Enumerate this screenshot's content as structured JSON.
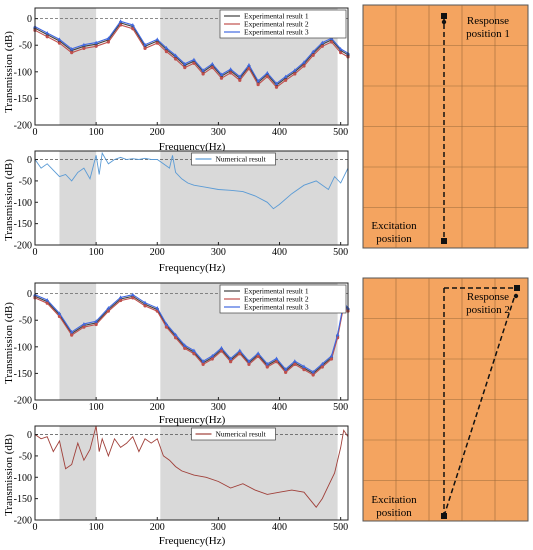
{
  "figure": {
    "background": "#ffffff",
    "grey_band_color": "#d9d9d9",
    "plate_color": "#f4a460",
    "plate_grid_color": "#9a6a3a"
  },
  "chart_data": [
    {
      "id": "exp1",
      "type": "line",
      "xlabel": "Frequency(Hz)",
      "ylabel": "Transmission (dB)",
      "xlim": [
        0,
        512
      ],
      "ylim": [
        -200,
        20
      ],
      "xticks": [
        0,
        100,
        200,
        300,
        400,
        500
      ],
      "yticks": [
        0,
        -50,
        -100,
        -150,
        -200
      ],
      "reference_line_y": 0,
      "shaded_bands": [
        [
          40,
          100
        ],
        [
          205,
          495
        ]
      ],
      "legend_position": "top-right",
      "series": [
        {
          "name": "Experimental result 1",
          "color": "#404040",
          "marker": "square",
          "x": [
            0,
            20,
            40,
            60,
            80,
            100,
            120,
            140,
            160,
            180,
            200,
            215,
            230,
            245,
            260,
            275,
            290,
            305,
            320,
            335,
            350,
            365,
            380,
            395,
            410,
            425,
            440,
            455,
            470,
            485,
            500,
            512
          ],
          "y": [
            -18,
            -30,
            -42,
            -60,
            -52,
            -48,
            -40,
            -8,
            -15,
            -52,
            -42,
            -58,
            -72,
            -88,
            -80,
            -100,
            -88,
            -108,
            -98,
            -112,
            -90,
            -120,
            -105,
            -125,
            -112,
            -100,
            -85,
            -65,
            -48,
            -40,
            -60,
            -68
          ]
        },
        {
          "name": "Experimental result 2",
          "color": "#c0504d",
          "marker": "circle",
          "x": [
            0,
            20,
            40,
            60,
            80,
            100,
            120,
            140,
            160,
            180,
            200,
            215,
            230,
            245,
            260,
            275,
            290,
            305,
            320,
            335,
            350,
            365,
            380,
            395,
            410,
            425,
            440,
            455,
            470,
            485,
            500,
            512
          ],
          "y": [
            -22,
            -34,
            -46,
            -64,
            -56,
            -52,
            -44,
            -12,
            -19,
            -56,
            -46,
            -62,
            -76,
            -92,
            -84,
            -104,
            -92,
            -112,
            -102,
            -116,
            -94,
            -124,
            -109,
            -129,
            -116,
            -104,
            -89,
            -69,
            -52,
            -44,
            -64,
            -72
          ]
        },
        {
          "name": "Experimental result 3",
          "color": "#4169e1",
          "marker": "triangle",
          "x": [
            0,
            20,
            40,
            60,
            80,
            100,
            120,
            140,
            160,
            180,
            200,
            215,
            230,
            245,
            260,
            275,
            290,
            305,
            320,
            335,
            350,
            365,
            380,
            395,
            410,
            425,
            440,
            455,
            470,
            485,
            500,
            512
          ],
          "y": [
            -15,
            -27,
            -39,
            -57,
            -49,
            -45,
            -37,
            -5,
            -12,
            -49,
            -39,
            -55,
            -69,
            -85,
            -77,
            -97,
            -85,
            -105,
            -95,
            -109,
            -87,
            -117,
            -102,
            -122,
            -109,
            -97,
            -82,
            -62,
            -45,
            -37,
            -57,
            -65
          ]
        }
      ]
    },
    {
      "id": "num1",
      "type": "line",
      "xlabel": "Frequency(Hz)",
      "ylabel": "Transmission (dB)",
      "xlim": [
        0,
        512
      ],
      "ylim": [
        -200,
        20
      ],
      "xticks": [
        0,
        100,
        200,
        300,
        400,
        500
      ],
      "yticks": [
        0,
        -50,
        -100,
        -150,
        -200
      ],
      "reference_line_y": 0,
      "shaded_bands": [
        [
          40,
          100
        ],
        [
          205,
          495
        ]
      ],
      "legend_position": "top-center",
      "series": [
        {
          "name": "Numerical result",
          "color": "#5b9bd5",
          "x": [
            0,
            10,
            20,
            30,
            40,
            50,
            60,
            70,
            80,
            90,
            100,
            105,
            110,
            120,
            130,
            140,
            150,
            160,
            170,
            180,
            190,
            200,
            210,
            220,
            225,
            230,
            240,
            250,
            260,
            280,
            300,
            320,
            340,
            360,
            380,
            390,
            400,
            420,
            440,
            460,
            480,
            490,
            500,
            512
          ],
          "y": [
            0,
            -20,
            -10,
            -25,
            -40,
            -35,
            -50,
            -30,
            -20,
            -45,
            10,
            -35,
            15,
            -10,
            0,
            5,
            0,
            2,
            0,
            3,
            0,
            0,
            -10,
            -20,
            10,
            -30,
            -45,
            -55,
            -60,
            -65,
            -70,
            -72,
            -75,
            -85,
            -100,
            -115,
            -105,
            -80,
            -60,
            -50,
            -70,
            -40,
            -55,
            -20
          ]
        }
      ]
    },
    {
      "id": "exp2",
      "type": "line",
      "xlabel": "Frequency(Hz)",
      "ylabel": "Transmission (dB)",
      "xlim": [
        0,
        512
      ],
      "ylim": [
        -200,
        20
      ],
      "xticks": [
        0,
        100,
        200,
        300,
        400,
        500
      ],
      "yticks": [
        0,
        -50,
        -100,
        -150,
        -200
      ],
      "reference_line_y": 0,
      "shaded_bands": [
        [
          40,
          100
        ],
        [
          205,
          495
        ]
      ],
      "legend_position": "top-right",
      "series": [
        {
          "name": "Experimental result 1",
          "color": "#404040",
          "marker": "square",
          "x": [
            0,
            20,
            40,
            60,
            80,
            100,
            120,
            140,
            160,
            180,
            200,
            215,
            230,
            245,
            260,
            275,
            290,
            305,
            320,
            335,
            350,
            365,
            380,
            395,
            410,
            425,
            440,
            455,
            470,
            485,
            495,
            505,
            512
          ],
          "y": [
            -5,
            -15,
            -40,
            -75,
            -60,
            -55,
            -30,
            -10,
            -5,
            -20,
            -30,
            -60,
            -80,
            -100,
            -110,
            -130,
            -120,
            -105,
            -125,
            -110,
            -130,
            -115,
            -135,
            -125,
            -145,
            -130,
            -140,
            -150,
            -135,
            -120,
            -80,
            -20,
            -30
          ]
        },
        {
          "name": "Experimental result 2",
          "color": "#c0504d",
          "marker": "circle",
          "x": [
            0,
            20,
            40,
            60,
            80,
            100,
            120,
            140,
            160,
            180,
            200,
            215,
            230,
            245,
            260,
            275,
            290,
            305,
            320,
            335,
            350,
            365,
            380,
            395,
            410,
            425,
            440,
            455,
            470,
            485,
            495,
            505,
            512
          ],
          "y": [
            -8,
            -18,
            -43,
            -78,
            -63,
            -58,
            -33,
            -13,
            -8,
            -23,
            -33,
            -63,
            -83,
            -103,
            -113,
            -133,
            -123,
            -108,
            -128,
            -113,
            -133,
            -118,
            -138,
            -128,
            -148,
            -133,
            -143,
            -153,
            -138,
            -123,
            -83,
            -23,
            -33
          ]
        },
        {
          "name": "Experimental result 3",
          "color": "#4169e1",
          "marker": "triangle",
          "x": [
            0,
            20,
            40,
            60,
            80,
            100,
            120,
            140,
            160,
            180,
            200,
            215,
            230,
            245,
            260,
            275,
            290,
            305,
            320,
            335,
            350,
            365,
            380,
            395,
            410,
            425,
            440,
            455,
            470,
            485,
            495,
            505,
            512
          ],
          "y": [
            -2,
            -12,
            -37,
            -72,
            -57,
            -52,
            -27,
            -7,
            -2,
            -17,
            -27,
            -57,
            -77,
            -97,
            -107,
            -127,
            -117,
            -102,
            -122,
            -107,
            -127,
            -112,
            -132,
            -122,
            -142,
            -127,
            -137,
            -147,
            -132,
            -117,
            -77,
            -17,
            -27
          ]
        }
      ]
    },
    {
      "id": "num2",
      "type": "line",
      "xlabel": "Frequency(Hz)",
      "ylabel": "Transmission (dB)",
      "xlim": [
        0,
        512
      ],
      "ylim": [
        -200,
        20
      ],
      "xticks": [
        0,
        100,
        200,
        300,
        400,
        500
      ],
      "yticks": [
        0,
        -50,
        -100,
        -150,
        -200
      ],
      "reference_line_y": 0,
      "shaded_bands": [
        [
          40,
          100
        ],
        [
          205,
          495
        ]
      ],
      "legend_position": "top-center",
      "series": [
        {
          "name": "Numerical result",
          "color": "#a0403a",
          "x": [
            0,
            10,
            20,
            30,
            40,
            50,
            60,
            70,
            80,
            90,
            100,
            105,
            110,
            120,
            130,
            140,
            150,
            160,
            170,
            180,
            190,
            200,
            210,
            220,
            230,
            240,
            260,
            280,
            300,
            320,
            340,
            360,
            380,
            400,
            420,
            440,
            460,
            470,
            480,
            490,
            500,
            505,
            512
          ],
          "y": [
            0,
            -10,
            -5,
            -40,
            -15,
            -80,
            -70,
            -20,
            -60,
            -35,
            20,
            -40,
            -10,
            -50,
            -10,
            -30,
            -20,
            -5,
            -40,
            -10,
            -20,
            -10,
            -50,
            -60,
            -75,
            -85,
            -95,
            -100,
            -110,
            -125,
            -115,
            -130,
            -140,
            -135,
            -130,
            -135,
            -170,
            -150,
            -120,
            -90,
            -30,
            10,
            -5
          ]
        }
      ]
    }
  ],
  "panels": [
    {
      "id": "plate1",
      "response_label_line1": "Response",
      "response_label_line2": "position  1",
      "excitation_label_line1": "Excitation",
      "excitation_label_line2": "position"
    },
    {
      "id": "plate2",
      "response_label_line1": "Response",
      "response_label_line2": "position  2",
      "excitation_label_line1": "Excitation",
      "excitation_label_line2": "position"
    }
  ]
}
